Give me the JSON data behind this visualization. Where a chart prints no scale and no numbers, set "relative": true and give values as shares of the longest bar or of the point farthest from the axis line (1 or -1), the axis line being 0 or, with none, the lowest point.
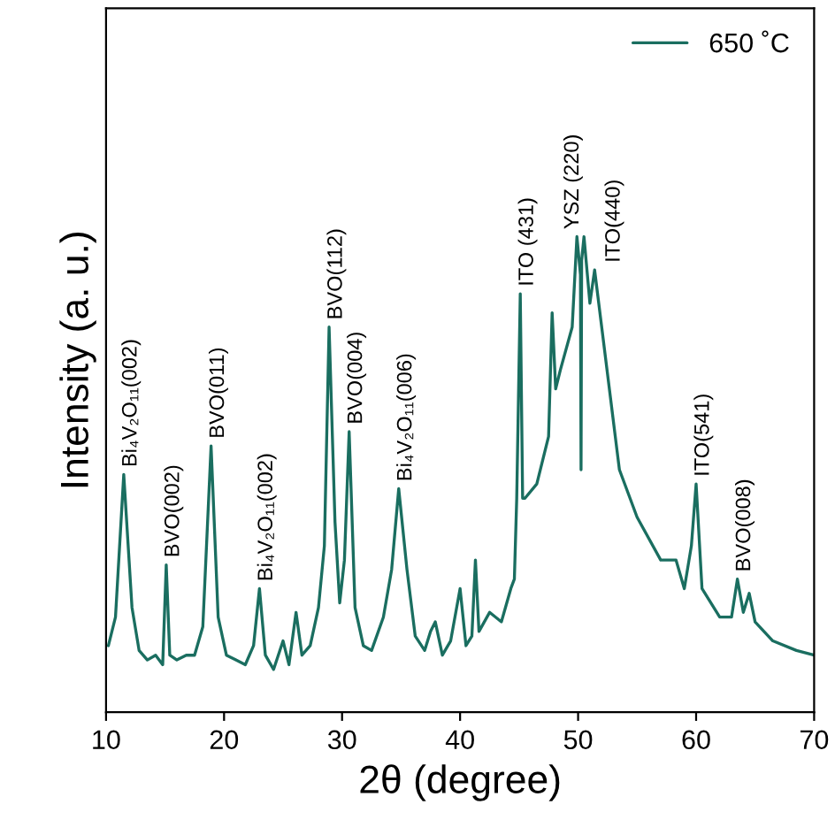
{
  "chart_data": {
    "type": "line",
    "relative": true,
    "xlabel": "2θ (degree)",
    "ylabel": "Intensity (a. u.)",
    "xlim": [
      10,
      70
    ],
    "xticks": [
      10,
      20,
      30,
      40,
      50,
      60,
      70
    ],
    "x": [
      10.2,
      10.8,
      11.5,
      12.2,
      12.8,
      13.5,
      14.2,
      14.8,
      15.1,
      15.4,
      16.0,
      16.8,
      17.5,
      18.2,
      18.9,
      19.5,
      20.2,
      21.0,
      21.8,
      22.5,
      23.0,
      23.5,
      24.2,
      25.0,
      25.5,
      26.1,
      26.6,
      27.3,
      28.0,
      28.5,
      28.9,
      29.4,
      29.8,
      30.2,
      30.6,
      31.1,
      31.8,
      32.5,
      33.5,
      34.2,
      34.8,
      35.5,
      36.2,
      37.0,
      37.5,
      37.9,
      38.5,
      39.2,
      40.0,
      40.5,
      41.0,
      41.3,
      41.6,
      42.5,
      43.5,
      44.3,
      44.6,
      44.8,
      45.1,
      45.3,
      45.5,
      46.5,
      47.5,
      47.8,
      48.1,
      48.5,
      49.5,
      49.9,
      50.2,
      50.25,
      50.3,
      50.5,
      51.0,
      51.4,
      52.0,
      53.5,
      55.0,
      57.0,
      58.3,
      59.0,
      59.6,
      60.0,
      60.5,
      62.0,
      63.0,
      63.5,
      64.0,
      64.5,
      65.0,
      66.5,
      68.5,
      70.0
    ],
    "series": [
      {
        "name": "650 ˚C",
        "color": "#1a6e60",
        "values": [
          0.14,
          0.2,
          0.5,
          0.22,
          0.13,
          0.11,
          0.12,
          0.1,
          0.31,
          0.12,
          0.11,
          0.12,
          0.12,
          0.18,
          0.56,
          0.2,
          0.12,
          0.11,
          0.1,
          0.14,
          0.26,
          0.12,
          0.09,
          0.15,
          0.1,
          0.21,
          0.12,
          0.14,
          0.22,
          0.35,
          0.81,
          0.4,
          0.23,
          0.32,
          0.59,
          0.22,
          0.14,
          0.13,
          0.2,
          0.3,
          0.47,
          0.3,
          0.16,
          0.13,
          0.17,
          0.19,
          0.12,
          0.15,
          0.26,
          0.14,
          0.16,
          0.32,
          0.17,
          0.21,
          0.19,
          0.26,
          0.28,
          0.45,
          0.88,
          0.45,
          0.45,
          0.48,
          0.58,
          0.84,
          0.68,
          0.72,
          0.81,
          1.0,
          0.92,
          0.51,
          0.95,
          1.0,
          0.86,
          0.93,
          0.81,
          0.51,
          0.41,
          0.32,
          0.32,
          0.26,
          0.35,
          0.48,
          0.26,
          0.2,
          0.2,
          0.28,
          0.21,
          0.25,
          0.19,
          0.15,
          0.13,
          0.12
        ]
      }
    ],
    "annotations": [
      {
        "text": "Bi₄V₂O₁₁(002)",
        "x": 11.5,
        "y": 0.5
      },
      {
        "text": "BVO(002)",
        "x": 15.1,
        "y": 0.31
      },
      {
        "text": "BVO(011)",
        "x": 18.9,
        "y": 0.56
      },
      {
        "text": "Bi₄V₂O₁₁(002)",
        "x": 23.0,
        "y": 0.26
      },
      {
        "text": "BVO(112)",
        "x": 28.9,
        "y": 0.81
      },
      {
        "text": "BVO(004)",
        "x": 30.6,
        "y": 0.59
      },
      {
        "text": "Bi₄V₂O₁₁(006)",
        "x": 34.8,
        "y": 0.47
      },
      {
        "text": "ITO (431)",
        "x": 45.1,
        "y": 0.88
      },
      {
        "text": "YSZ (220)",
        "x": 50.2,
        "y": 1.0
      },
      {
        "text": "ITO(440)",
        "x": 51.4,
        "y": 0.93
      },
      {
        "text": "ITO(541)",
        "x": 60.0,
        "y": 0.48
      },
      {
        "text": "BVO(008)",
        "x": 63.5,
        "y": 0.28
      }
    ],
    "legend": "top right",
    "grid": false,
    "marker": "none",
    "line_style": "solid"
  }
}
